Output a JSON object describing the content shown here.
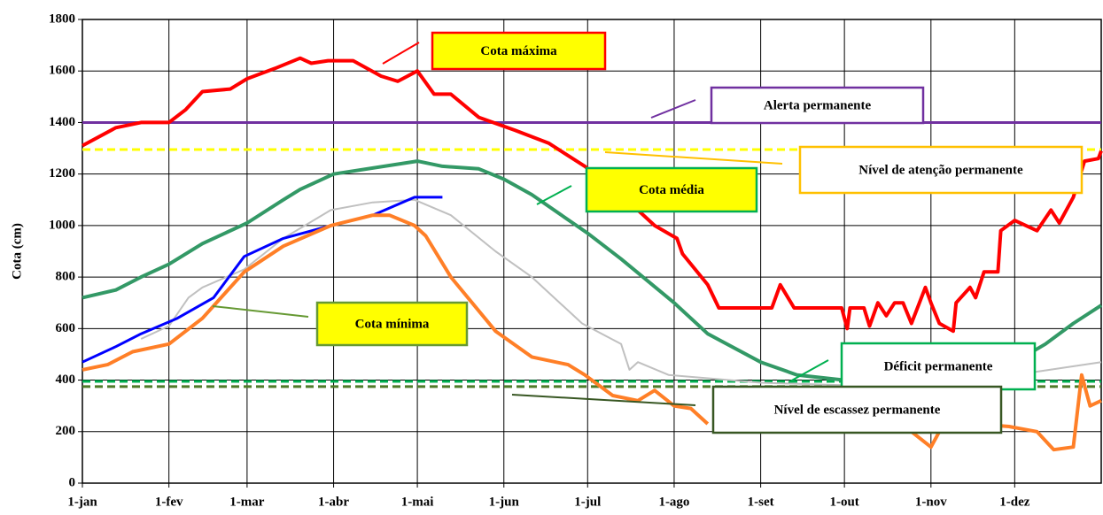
{
  "chart_data": {
    "type": "line",
    "y_label": "Cota (cm)",
    "xlim": [
      0,
      365
    ],
    "xticks": [
      {
        "value": 0,
        "label": "1-jan"
      },
      {
        "value": 31,
        "label": "1-fev"
      },
      {
        "value": 59,
        "label": "1-mar"
      },
      {
        "value": 90,
        "label": "1-abr"
      },
      {
        "value": 120,
        "label": "1-mai"
      },
      {
        "value": 151,
        "label": "1-jun"
      },
      {
        "value": 181,
        "label": "1-jul"
      },
      {
        "value": 212,
        "label": "1-ago"
      },
      {
        "value": 243,
        "label": "1-set"
      },
      {
        "value": 273,
        "label": "1-out"
      },
      {
        "value": 304,
        "label": "1-nov"
      },
      {
        "value": 334,
        "label": "1-dez"
      }
    ],
    "ylim": [
      0,
      1800
    ],
    "yticks": [
      0,
      200,
      400,
      600,
      800,
      1000,
      1200,
      1400,
      1600,
      1800
    ],
    "grid": true,
    "series": [
      {
        "name": "Cota máxima",
        "color": "#ff0000",
        "x": [
          0,
          12,
          21,
          31,
          37,
          43,
          53,
          59,
          69,
          78,
          82,
          88,
          97,
          107,
          113,
          120,
          126,
          132,
          142,
          155,
          167,
          180,
          193,
          205,
          213,
          215,
          224,
          228,
          247,
          250,
          255,
          272,
          274,
          275,
          280,
          282,
          285,
          288,
          291,
          294,
          297,
          302,
          304,
          307,
          312,
          313,
          318,
          320,
          323,
          328,
          329,
          334,
          342,
          347,
          350,
          355,
          359,
          364,
          365
        ],
        "values": [
          1310,
          1380,
          1400,
          1400,
          1450,
          1520,
          1530,
          1570,
          1610,
          1650,
          1630,
          1640,
          1640,
          1580,
          1560,
          1600,
          1510,
          1510,
          1420,
          1370,
          1320,
          1230,
          1120,
          1000,
          950,
          890,
          770,
          680,
          680,
          770,
          680,
          680,
          600,
          680,
          680,
          610,
          700,
          650,
          700,
          700,
          620,
          760,
          700,
          620,
          590,
          700,
          760,
          720,
          820,
          820,
          980,
          1020,
          980,
          1060,
          1010,
          1110,
          1250,
          1260,
          1290
        ]
      },
      {
        "name": "Cota média",
        "color": "#339966",
        "x": [
          0,
          12,
          21,
          31,
          43,
          59,
          72,
          78,
          90,
          120,
          129,
          142,
          151,
          161,
          181,
          193,
          212,
          224,
          243,
          256,
          273,
          288,
          304,
          320,
          334,
          345,
          355,
          365
        ],
        "values": [
          720,
          750,
          800,
          850,
          930,
          1010,
          1100,
          1140,
          1200,
          1250,
          1230,
          1220,
          1180,
          1120,
          970,
          870,
          700,
          580,
          470,
          420,
          400,
          400,
          400,
          420,
          470,
          540,
          620,
          690
        ]
      },
      {
        "name": "Cota mínima",
        "color": "#ff7f27",
        "x": [
          0,
          9,
          18,
          31,
          43,
          58,
          72,
          89,
          104,
          110,
          119,
          123,
          132,
          148,
          161,
          174,
          180,
          190,
          199,
          205,
          212,
          218,
          224,
          260,
          297,
          304,
          307,
          320,
          332,
          342,
          348,
          355,
          358,
          361,
          365
        ],
        "values": [
          440,
          460,
          510,
          540,
          640,
          820,
          920,
          1000,
          1040,
          1040,
          1000,
          960,
          800,
          590,
          490,
          460,
          420,
          340,
          320,
          360,
          300,
          290,
          230,
          null,
          200,
          140,
          200,
          230,
          220,
          200,
          130,
          140,
          420,
          300,
          320
        ]
      },
      {
        "color": "#0000ff",
        "x": [
          0,
          12,
          21,
          34,
          47,
          58,
          72,
          89,
          104,
          119,
          129
        ],
        "values": [
          470,
          530,
          580,
          640,
          720,
          880,
          950,
          1000,
          1040,
          1110,
          1110
        ]
      },
      {
        "color": "#c0c0c0",
        "x": [
          21,
          31,
          38,
          43,
          58,
          72,
          89,
          104,
          119,
          132,
          148,
          161,
          179,
          193,
          196,
          199,
          210,
          243,
          273,
          304,
          334,
          365
        ],
        "values": [
          560,
          610,
          720,
          760,
          830,
          950,
          1060,
          1090,
          1100,
          1040,
          900,
          800,
          620,
          540,
          440,
          470,
          420,
          390,
          380,
          390,
          420,
          470
        ]
      }
    ],
    "reference_lines": [
      {
        "name": "Alerta permanente",
        "value": 1400,
        "color": "#7030a0",
        "dashed": false
      },
      {
        "name": "Nível de atenção permanente",
        "value": 1295,
        "color": "#ffff00",
        "dashed": true
      },
      {
        "name": "Déficit permanente",
        "value": 395,
        "color": "#00b050",
        "dashed": true
      },
      {
        "name": "Nível de escassez permanente",
        "value": 375,
        "color": "#4f7a28",
        "dashed": true
      }
    ]
  }
}
